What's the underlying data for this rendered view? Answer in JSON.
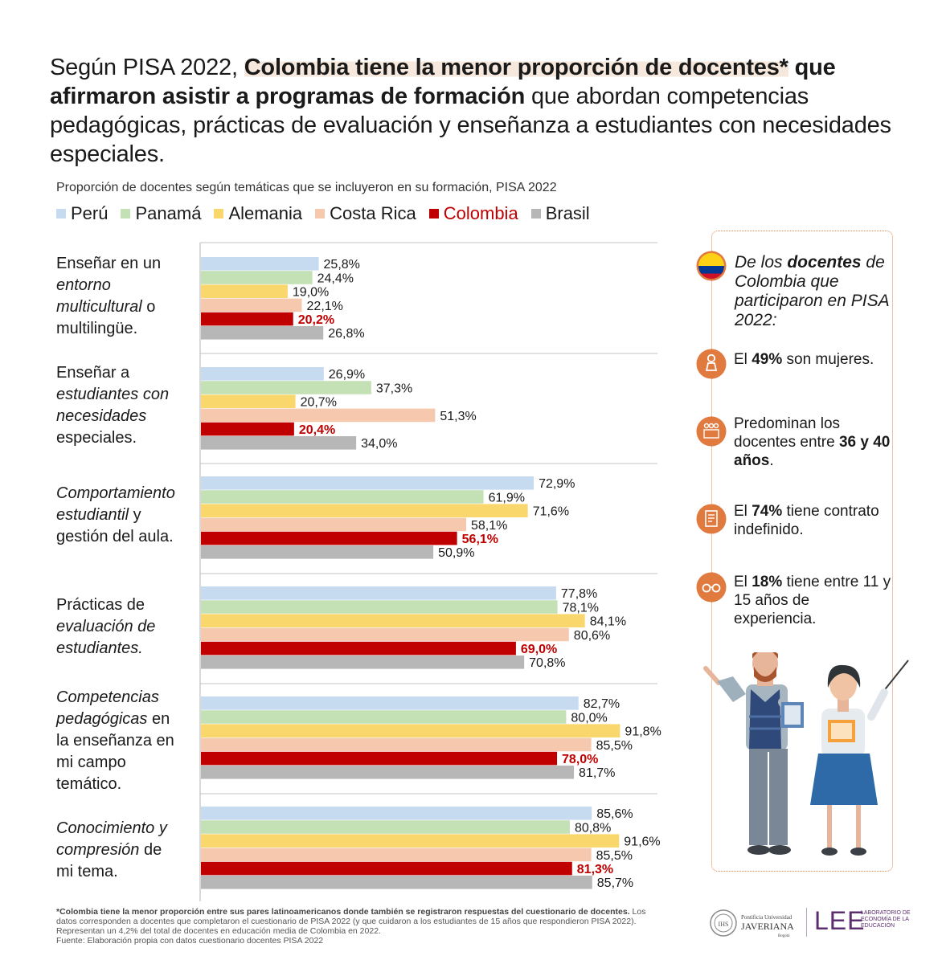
{
  "title": {
    "part1": "Según PISA 2022, ",
    "part2": "Colombia tiene la menor proporción de docentes*",
    "part3": " que afirmaron asistir a programas de formación",
    "part4": " que abordan competencias pedagógicas, prácticas de evaluación y enseñanza a estudiantes con necesidades especiales."
  },
  "colors": {
    "Perú": "#c6daf0",
    "Panamá": "#c4e0b5",
    "Alemania": "#fad76c",
    "Costa Rica": "#f6c9ae",
    "Colombia": "#c00000",
    "Brasil": "#b7b7b7",
    "accent": "#e07a3f",
    "colombia_text": "#c00000"
  },
  "chart_data": {
    "type": "bar",
    "orientation": "horizontal",
    "title": "Proporción de docentes según temáticas que se incluyeron en su formación, PISA 2022",
    "xlim": [
      0,
      100
    ],
    "legend_position": "top",
    "categories": [
      "Enseñar en un entorno multicultural o multilingüe.",
      "Enseñar a estudiantes con necesidades especiales.",
      "Comportamiento estudiantil y gestión del aula.",
      "Prácticas de evaluación de estudiantes.",
      "Competencias pedagógicas en la enseñanza en mi campo temático.",
      "Conocimiento y compresión de mi tema."
    ],
    "series": [
      {
        "name": "Perú",
        "values": [
          25.8,
          26.9,
          72.9,
          77.8,
          82.7,
          85.6
        ]
      },
      {
        "name": "Panamá",
        "values": [
          24.4,
          37.3,
          61.9,
          78.1,
          80.0,
          80.8
        ]
      },
      {
        "name": "Alemania",
        "values": [
          19.0,
          20.7,
          71.6,
          84.1,
          91.8,
          91.6
        ]
      },
      {
        "name": "Costa Rica",
        "values": [
          22.1,
          51.3,
          58.1,
          80.6,
          85.5,
          85.5
        ]
      },
      {
        "name": "Colombia",
        "values": [
          20.2,
          20.4,
          56.1,
          69.0,
          78.0,
          81.3
        ]
      },
      {
        "name": "Brasil",
        "values": [
          26.8,
          34.0,
          50.9,
          70.8,
          81.7,
          85.7
        ]
      }
    ],
    "value_labels": [
      [
        "25,8%",
        "24,4%",
        "19,0%",
        "22,1%",
        "20,2%",
        "26,8%"
      ],
      [
        "26,9%",
        "37,3%",
        "20,7%",
        "51,3%",
        "20,4%",
        "34,0%"
      ],
      [
        "72,9%",
        "61,9%",
        "71,6%",
        "58,1%",
        "56,1%",
        "50,9%"
      ],
      [
        "77,8%",
        "78,1%",
        "84,1%",
        "80,6%",
        "69,0%",
        "70,8%"
      ],
      [
        "82,7%",
        "80,0%",
        "91,8%",
        "85,5%",
        "78,0%",
        "81,7%"
      ],
      [
        "85,6%",
        "80,8%",
        "91,6%",
        "85,5%",
        "81,3%",
        "85,7%"
      ]
    ]
  },
  "categories_display": [
    [
      {
        "t": "Enseñar en un",
        "i": false
      },
      {
        "t": "entorno",
        "i": true
      },
      {
        "t": "multicultural",
        "i": true,
        "tail": " o"
      },
      {
        "t": "multilingüe.",
        "i": false
      }
    ],
    [
      {
        "t": "Enseñar a",
        "i": false
      },
      {
        "t": "estudiantes con",
        "i": true
      },
      {
        "t": "necesidades",
        "i": true
      },
      {
        "t": "especiales.",
        "i": false
      }
    ],
    [
      {
        "t": "Comportamiento",
        "i": true
      },
      {
        "t": "estudiantil",
        "i": true,
        "tail": " y"
      },
      {
        "t": "gestión del aula.",
        "i": false
      }
    ],
    [
      {
        "t": "Prácticas de",
        "i": false
      },
      {
        "t": "evaluación de",
        "i": true
      },
      {
        "t": "estudiantes.",
        "i": true
      }
    ],
    [
      {
        "t": "Competencias",
        "i": true
      },
      {
        "t": "pedagógicas",
        "i": true,
        "tail": " en"
      },
      {
        "t": "la enseñanza en",
        "i": false
      },
      {
        "t": "mi campo",
        "i": false
      },
      {
        "t": "temático.",
        "i": false
      }
    ],
    [
      {
        "t": "Conocimiento y",
        "i": true
      },
      {
        "t": "compresión",
        "i": true,
        "tail": " de"
      },
      {
        "t": "mi tema.",
        "i": false
      }
    ]
  ],
  "sidebar": {
    "intro_1": "De los ",
    "intro_bold": "docentes",
    "intro_2": " de Colombia que participaron en PISA 2022:",
    "facts": [
      {
        "icon": "woman-icon",
        "pre": "El ",
        "bold": "49%",
        "post": " son mujeres."
      },
      {
        "icon": "group-icon",
        "pre": "Predominan los docentes entre ",
        "bold": "36 y 40 años",
        "post": "."
      },
      {
        "icon": "contract-icon",
        "pre": "El ",
        "bold": "74%",
        "post": " tiene contrato indefinido."
      },
      {
        "icon": "glasses-icon",
        "pre": "El ",
        "bold": "18%",
        "post": " tiene entre 11 y 15 años de experiencia."
      }
    ]
  },
  "footnote": {
    "bold": "*Colombia tiene la menor proporción entre sus pares latinoamericanos donde también se registraron respuestas del cuestionario de docentes.",
    "text": " Los datos corresponden a docentes que completaron el cuestionario de PISA 2022 (y que cuidaron a los estudiantes de 15 años que respondieron PISA 2022). Representan un 4,2% del total de docentes en educación media de Colombia en 2022.",
    "source": "Fuente: Elaboración propia con datos cuestionario docentes PISA 2022"
  },
  "logos": {
    "university_1": "Pontificia Universidad",
    "university_2": "JAVERIANA",
    "university_3": "Bogotá",
    "seal_text": "IHS",
    "lee": "LEE",
    "lee_sub": "LABORATORIO DE ECONOMÍA DE LA EDUCACIÓN"
  }
}
